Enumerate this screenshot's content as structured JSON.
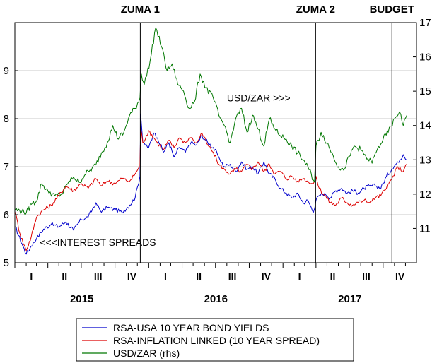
{
  "chart_data": {
    "type": "line",
    "x_start": "2015-01-01",
    "x_end": "2017-12-31",
    "years": [
      "2015",
      "2016",
      "2017"
    ],
    "quarter_labels": [
      "I",
      "II",
      "III",
      "IV"
    ],
    "left_axis": {
      "ylim": [
        5,
        10
      ],
      "ticks": [
        "5",
        "6",
        "7",
        "8",
        "9"
      ]
    },
    "right_axis": {
      "ylim": [
        10,
        17
      ],
      "ticks": [
        "11",
        "12",
        "13",
        "14",
        "15",
        "16",
        "17"
      ]
    },
    "grid": true,
    "events": [
      {
        "label": "ZUMA 1",
        "date": "2015-12-09"
      },
      {
        "label": "ZUMA 2",
        "date": "2017-03-31"
      },
      {
        "label": "BUDGET",
        "date": "2017-10-25"
      }
    ],
    "annotations": [
      {
        "text": "USD/ZAR >>>",
        "date": "2016-08-01",
        "value_rhs": 14.7
      },
      {
        "text": "<<<INTEREST SPREADS",
        "date": "2015-03-10",
        "value_lhs": 5.35
      }
    ],
    "legend_position": "bottom-center",
    "series": [
      {
        "name": "RSA-USA 10 YEAR BOND YIELDS",
        "axis": "left",
        "color": "#0000cc",
        "points": [
          [
            "2015-01-02",
            5.75
          ],
          [
            "2015-01-20",
            5.4
          ],
          [
            "2015-02-01",
            5.18
          ],
          [
            "2015-02-15",
            5.35
          ],
          [
            "2015-03-01",
            5.5
          ],
          [
            "2015-03-20",
            5.7
          ],
          [
            "2015-04-10",
            5.8
          ],
          [
            "2015-05-01",
            5.75
          ],
          [
            "2015-05-20",
            5.85
          ],
          [
            "2015-06-10",
            5.68
          ],
          [
            "2015-07-01",
            5.9
          ],
          [
            "2015-07-20",
            5.95
          ],
          [
            "2015-08-10",
            6.25
          ],
          [
            "2015-08-25",
            6.05
          ],
          [
            "2015-09-10",
            6.15
          ],
          [
            "2015-10-01",
            6.1
          ],
          [
            "2015-10-20",
            6.05
          ],
          [
            "2015-11-10",
            6.2
          ],
          [
            "2015-11-25",
            6.35
          ],
          [
            "2015-12-08",
            6.8
          ],
          [
            "2015-12-10",
            8.1
          ],
          [
            "2015-12-16",
            7.5
          ],
          [
            "2016-01-01",
            7.4
          ],
          [
            "2016-01-15",
            7.7
          ],
          [
            "2016-01-25",
            7.6
          ],
          [
            "2016-02-10",
            7.3
          ],
          [
            "2016-02-25",
            7.5
          ],
          [
            "2016-03-10",
            7.2
          ],
          [
            "2016-03-25",
            7.4
          ],
          [
            "2016-04-10",
            7.3
          ],
          [
            "2016-04-25",
            7.5
          ],
          [
            "2016-05-10",
            7.45
          ],
          [
            "2016-05-25",
            7.65
          ],
          [
            "2016-06-10",
            7.5
          ],
          [
            "2016-06-25",
            7.4
          ],
          [
            "2016-07-10",
            7.2
          ],
          [
            "2016-07-25",
            7.0
          ],
          [
            "2016-08-10",
            7.05
          ],
          [
            "2016-08-25",
            6.9
          ],
          [
            "2016-09-10",
            7.1
          ],
          [
            "2016-09-25",
            6.95
          ],
          [
            "2016-10-10",
            7.0
          ],
          [
            "2016-10-25",
            6.85
          ],
          [
            "2016-11-10",
            7.1
          ],
          [
            "2016-11-25",
            6.85
          ],
          [
            "2016-12-10",
            6.75
          ],
          [
            "2016-12-25",
            6.55
          ],
          [
            "2017-01-10",
            6.45
          ],
          [
            "2017-01-25",
            6.35
          ],
          [
            "2017-02-10",
            6.45
          ],
          [
            "2017-02-25",
            6.25
          ],
          [
            "2017-03-10",
            6.3
          ],
          [
            "2017-03-25",
            6.05
          ],
          [
            "2017-04-01",
            6.3
          ],
          [
            "2017-04-10",
            6.4
          ],
          [
            "2017-04-25",
            6.45
          ],
          [
            "2017-05-10",
            6.35
          ],
          [
            "2017-05-25",
            6.5
          ],
          [
            "2017-06-10",
            6.55
          ],
          [
            "2017-06-25",
            6.45
          ],
          [
            "2017-07-10",
            6.5
          ],
          [
            "2017-07-25",
            6.45
          ],
          [
            "2017-08-10",
            6.55
          ],
          [
            "2017-08-25",
            6.6
          ],
          [
            "2017-09-10",
            6.6
          ],
          [
            "2017-09-25",
            6.55
          ],
          [
            "2017-10-10",
            6.8
          ],
          [
            "2017-10-25",
            6.95
          ],
          [
            "2017-11-10",
            7.1
          ],
          [
            "2017-11-25",
            7.25
          ],
          [
            "2017-12-05",
            7.15
          ]
        ]
      },
      {
        "name": "RSA-INFLATION LINKED (10 YEAR SPREAD)",
        "axis": "left",
        "color": "#dd0000",
        "points": [
          [
            "2015-01-02",
            6.05
          ],
          [
            "2015-01-15",
            5.6
          ],
          [
            "2015-02-01",
            5.25
          ],
          [
            "2015-02-15",
            5.55
          ],
          [
            "2015-03-01",
            5.95
          ],
          [
            "2015-03-20",
            6.1
          ],
          [
            "2015-04-10",
            6.2
          ],
          [
            "2015-05-01",
            6.4
          ],
          [
            "2015-05-20",
            6.6
          ],
          [
            "2015-06-10",
            6.5
          ],
          [
            "2015-07-01",
            6.65
          ],
          [
            "2015-07-20",
            6.55
          ],
          [
            "2015-08-10",
            6.75
          ],
          [
            "2015-08-25",
            6.6
          ],
          [
            "2015-09-10",
            6.7
          ],
          [
            "2015-10-01",
            6.65
          ],
          [
            "2015-10-20",
            6.75
          ],
          [
            "2015-11-10",
            6.7
          ],
          [
            "2015-11-25",
            6.85
          ],
          [
            "2015-12-08",
            7.0
          ],
          [
            "2015-12-10",
            7.8
          ],
          [
            "2015-12-16",
            7.5
          ],
          [
            "2016-01-01",
            7.75
          ],
          [
            "2016-01-15",
            7.6
          ],
          [
            "2016-01-25",
            7.5
          ],
          [
            "2016-02-10",
            7.35
          ],
          [
            "2016-02-25",
            7.55
          ],
          [
            "2016-03-10",
            7.4
          ],
          [
            "2016-03-25",
            7.6
          ],
          [
            "2016-04-10",
            7.5
          ],
          [
            "2016-04-25",
            7.6
          ],
          [
            "2016-05-10",
            7.5
          ],
          [
            "2016-05-25",
            7.7
          ],
          [
            "2016-06-10",
            7.45
          ],
          [
            "2016-06-25",
            7.3
          ],
          [
            "2016-07-10",
            7.05
          ],
          [
            "2016-07-25",
            6.95
          ],
          [
            "2016-08-10",
            6.85
          ],
          [
            "2016-08-25",
            6.95
          ],
          [
            "2016-09-10",
            6.9
          ],
          [
            "2016-09-25",
            7.05
          ],
          [
            "2016-10-10",
            6.95
          ],
          [
            "2016-10-25",
            7.1
          ],
          [
            "2016-11-10",
            6.9
          ],
          [
            "2016-11-25",
            7.05
          ],
          [
            "2016-12-10",
            6.85
          ],
          [
            "2016-12-25",
            6.9
          ],
          [
            "2017-01-10",
            6.75
          ],
          [
            "2017-01-25",
            6.8
          ],
          [
            "2017-02-10",
            6.7
          ],
          [
            "2017-02-25",
            6.75
          ],
          [
            "2017-03-10",
            6.7
          ],
          [
            "2017-03-25",
            6.65
          ],
          [
            "2017-04-01",
            6.8
          ],
          [
            "2017-04-10",
            6.55
          ],
          [
            "2017-04-25",
            6.4
          ],
          [
            "2017-05-10",
            6.25
          ],
          [
            "2017-05-25",
            6.2
          ],
          [
            "2017-06-10",
            6.35
          ],
          [
            "2017-06-25",
            6.25
          ],
          [
            "2017-07-10",
            6.2
          ],
          [
            "2017-07-25",
            6.25
          ],
          [
            "2017-08-10",
            6.3
          ],
          [
            "2017-08-25",
            6.25
          ],
          [
            "2017-09-10",
            6.35
          ],
          [
            "2017-09-25",
            6.4
          ],
          [
            "2017-10-10",
            6.55
          ],
          [
            "2017-10-25",
            6.75
          ],
          [
            "2017-11-10",
            7.0
          ],
          [
            "2017-11-25",
            6.9
          ],
          [
            "2017-12-05",
            7.05
          ]
        ]
      },
      {
        "name": "USD/ZAR (rhs)",
        "axis": "right",
        "color": "#007700",
        "points": [
          [
            "2015-01-02",
            11.55
          ],
          [
            "2015-01-20",
            11.5
          ],
          [
            "2015-02-01",
            11.45
          ],
          [
            "2015-02-15",
            11.7
          ],
          [
            "2015-03-01",
            11.8
          ],
          [
            "2015-03-15",
            12.3
          ],
          [
            "2015-04-01",
            12.1
          ],
          [
            "2015-04-20",
            11.95
          ],
          [
            "2015-05-10",
            12.0
          ],
          [
            "2015-05-25",
            12.3
          ],
          [
            "2015-06-10",
            12.5
          ],
          [
            "2015-06-25",
            12.35
          ],
          [
            "2015-07-10",
            12.55
          ],
          [
            "2015-07-25",
            12.7
          ],
          [
            "2015-08-10",
            12.85
          ],
          [
            "2015-08-25",
            13.2
          ],
          [
            "2015-09-10",
            13.5
          ],
          [
            "2015-09-25",
            14.0
          ],
          [
            "2015-10-10",
            13.6
          ],
          [
            "2015-10-25",
            13.8
          ],
          [
            "2015-11-10",
            14.3
          ],
          [
            "2015-11-25",
            14.5
          ],
          [
            "2015-12-08",
            14.8
          ],
          [
            "2015-12-12",
            15.5
          ],
          [
            "2015-12-20",
            15.2
          ],
          [
            "2016-01-05",
            15.9
          ],
          [
            "2016-01-20",
            16.85
          ],
          [
            "2016-02-05",
            16.3
          ],
          [
            "2016-02-20",
            15.6
          ],
          [
            "2016-03-05",
            15.8
          ],
          [
            "2016-03-20",
            15.2
          ],
          [
            "2016-04-05",
            15.0
          ],
          [
            "2016-04-20",
            14.5
          ],
          [
            "2016-05-05",
            14.7
          ],
          [
            "2016-05-20",
            15.5
          ],
          [
            "2016-06-05",
            15.1
          ],
          [
            "2016-06-25",
            14.8
          ],
          [
            "2016-07-10",
            14.3
          ],
          [
            "2016-07-25",
            14.0
          ],
          [
            "2016-08-10",
            13.5
          ],
          [
            "2016-08-25",
            14.2
          ],
          [
            "2016-09-10",
            14.5
          ],
          [
            "2016-09-25",
            13.8
          ],
          [
            "2016-10-10",
            14.3
          ],
          [
            "2016-10-25",
            13.9
          ],
          [
            "2016-11-10",
            13.4
          ],
          [
            "2016-11-25",
            14.2
          ],
          [
            "2016-12-10",
            13.9
          ],
          [
            "2016-12-25",
            13.7
          ],
          [
            "2017-01-10",
            13.6
          ],
          [
            "2017-01-25",
            13.4
          ],
          [
            "2017-02-10",
            13.2
          ],
          [
            "2017-02-25",
            13.0
          ],
          [
            "2017-03-10",
            12.8
          ],
          [
            "2017-03-28",
            12.35
          ],
          [
            "2017-04-01",
            13.4
          ],
          [
            "2017-04-15",
            13.8
          ],
          [
            "2017-05-01",
            13.5
          ],
          [
            "2017-05-15",
            13.2
          ],
          [
            "2017-06-01",
            12.8
          ],
          [
            "2017-06-15",
            12.7
          ],
          [
            "2017-07-01",
            13.1
          ],
          [
            "2017-07-15",
            13.4
          ],
          [
            "2017-08-01",
            13.3
          ],
          [
            "2017-08-15",
            13.1
          ],
          [
            "2017-09-01",
            12.9
          ],
          [
            "2017-09-15",
            13.3
          ],
          [
            "2017-10-01",
            13.6
          ],
          [
            "2017-10-15",
            13.8
          ],
          [
            "2017-11-01",
            14.2
          ],
          [
            "2017-11-15",
            14.4
          ],
          [
            "2017-11-25",
            14.0
          ],
          [
            "2017-12-05",
            14.3
          ]
        ]
      }
    ]
  }
}
